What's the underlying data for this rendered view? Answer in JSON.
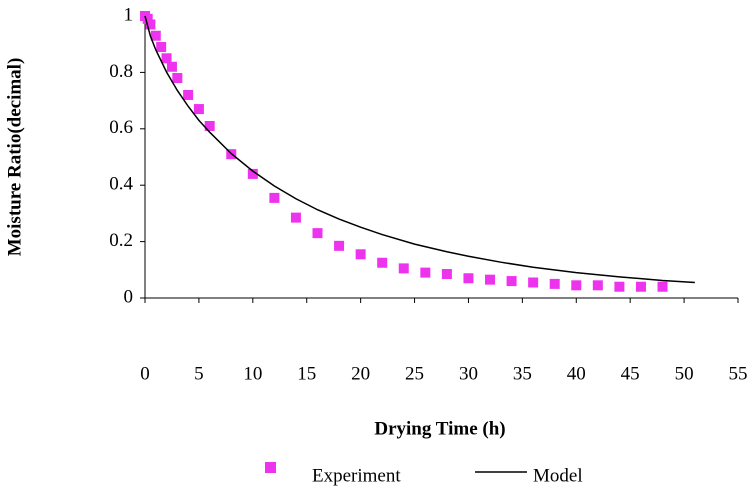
{
  "chart_data": {
    "type": "scatter-line",
    "x_label": "Drying Time (h)",
    "y_label": "Moisture Ratio(decimal)",
    "xlim": [
      0,
      55
    ],
    "xticks": [
      0,
      5,
      10,
      15,
      20,
      25,
      30,
      35,
      40,
      45,
      50,
      55
    ],
    "ylim": [
      0,
      1
    ],
    "yticks": [
      0,
      0.2,
      0.4,
      0.6,
      0.8,
      1
    ],
    "legend": "bottom",
    "series": [
      {
        "name": "Experiment",
        "kind": "scatter",
        "color": "#ee33ee",
        "x": [
          0,
          0.25,
          0.5,
          1,
          1.5,
          2,
          2.5,
          3,
          4,
          5,
          6,
          8,
          10,
          12,
          14,
          16,
          18,
          20,
          22,
          24,
          26,
          28,
          30,
          32,
          34,
          36,
          38,
          40,
          42,
          44,
          46,
          48
        ],
        "values": [
          1,
          0.99,
          0.97,
          0.93,
          0.89,
          0.85,
          0.82,
          0.78,
          0.72,
          0.67,
          0.61,
          0.51,
          0.44,
          0.355,
          0.285,
          0.23,
          0.185,
          0.155,
          0.125,
          0.105,
          0.09,
          0.085,
          0.07,
          0.065,
          0.06,
          0.055,
          0.05,
          0.045,
          0.045,
          0.04,
          0.04,
          0.04
        ]
      },
      {
        "name": "Model",
        "kind": "line",
        "color": "#000000",
        "x": [
          0,
          0.5,
          1,
          2,
          3,
          4,
          5,
          6,
          8,
          10,
          12,
          14,
          16,
          18,
          20,
          22,
          25,
          28,
          30,
          33,
          36,
          40,
          44,
          48,
          51
        ],
        "values": [
          1,
          0.929,
          0.88,
          0.801,
          0.736,
          0.68,
          0.63,
          0.588,
          0.512,
          0.45,
          0.397,
          0.352,
          0.313,
          0.28,
          0.251,
          0.225,
          0.191,
          0.164,
          0.148,
          0.127,
          0.109,
          0.09,
          0.075,
          0.062,
          0.055
        ]
      }
    ]
  }
}
